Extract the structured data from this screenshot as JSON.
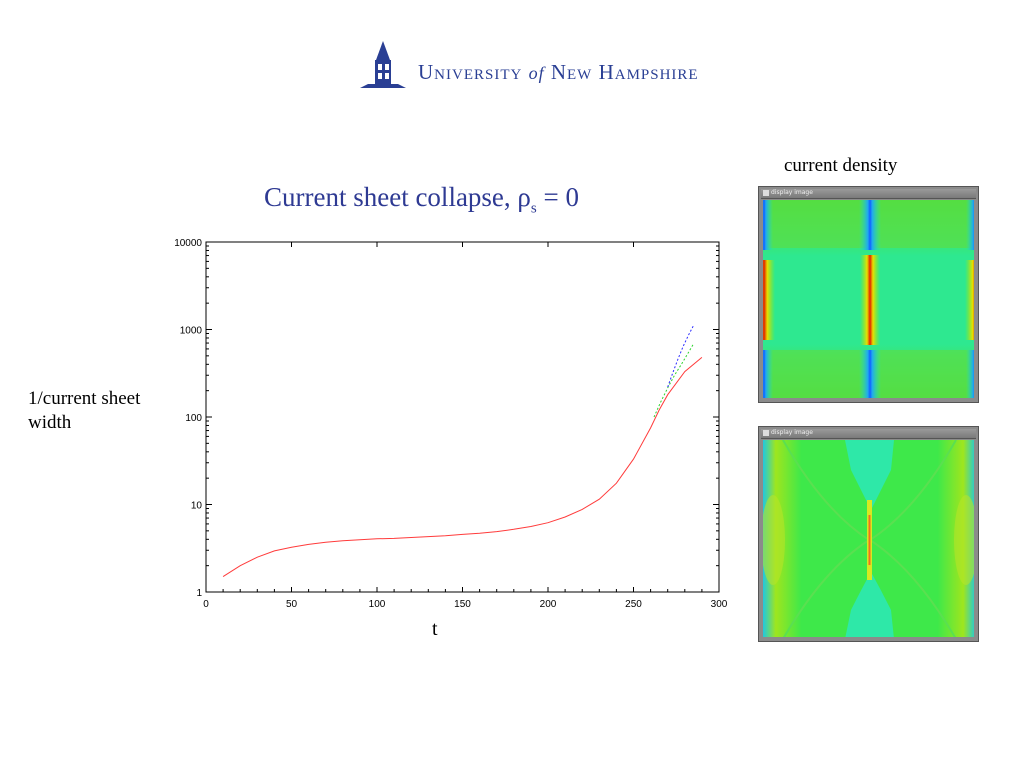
{
  "header": {
    "logo_name": "University of New Hampshire",
    "logo_part1": "University",
    "logo_of": "of",
    "logo_part2": "New Hampshire"
  },
  "slide": {
    "title_main": "Current sheet collapse, ρ",
    "title_sub": "s",
    "title_end": " = 0",
    "y_axis_text": "1/current sheet width",
    "x_axis_text": "t",
    "panel_caption": "current density",
    "panel_window_title": "display image"
  },
  "colors": {
    "brand": "#2a3f94",
    "title": "#2e3a93",
    "series_red": "#ff3b3b",
    "series_green": "#2bd42b",
    "series_blue": "#2b2bff"
  },
  "chart_data": {
    "type": "line",
    "title": "Current sheet collapse, ρs = 0",
    "xlabel": "t",
    "ylabel": "1/current sheet width",
    "xlim": [
      0,
      300
    ],
    "ylim": [
      1,
      10000
    ],
    "yscale": "log",
    "xticks": [
      "0",
      "50",
      "100",
      "150",
      "200",
      "250",
      "300"
    ],
    "yticks": [
      "1",
      "10",
      "100",
      "1000",
      "10000"
    ],
    "xtick_values": [
      0,
      50,
      100,
      150,
      200,
      250,
      300
    ],
    "ytick_values": [
      1,
      10,
      100,
      1000,
      10000
    ],
    "grid": false,
    "series": [
      {
        "color": "#ff3b3b",
        "style": "solid",
        "x": [
          10,
          20,
          30,
          40,
          50,
          60,
          70,
          80,
          90,
          100,
          110,
          120,
          130,
          140,
          150,
          160,
          170,
          180,
          190,
          200,
          210,
          220,
          230,
          240,
          250,
          260,
          265,
          270,
          280,
          290
        ],
        "y": [
          1.5,
          2.0,
          2.5,
          2.95,
          3.25,
          3.5,
          3.7,
          3.85,
          3.95,
          4.05,
          4.1,
          4.2,
          4.3,
          4.4,
          4.55,
          4.7,
          4.9,
          5.2,
          5.6,
          6.2,
          7.2,
          8.8,
          11.5,
          17.5,
          33,
          75,
          120,
          180,
          330,
          480
        ]
      },
      {
        "color": "#2bd42b",
        "style": "dotted",
        "x": [
          262,
          266,
          270,
          274,
          278,
          282,
          285
        ],
        "y": [
          100,
          150,
          215,
          300,
          400,
          540,
          680
        ]
      },
      {
        "color": "#2b2bff",
        "style": "dotted",
        "x": [
          270,
          273,
          276,
          279,
          282,
          285
        ],
        "y": [
          220,
          320,
          460,
          640,
          850,
          1100
        ]
      }
    ]
  }
}
